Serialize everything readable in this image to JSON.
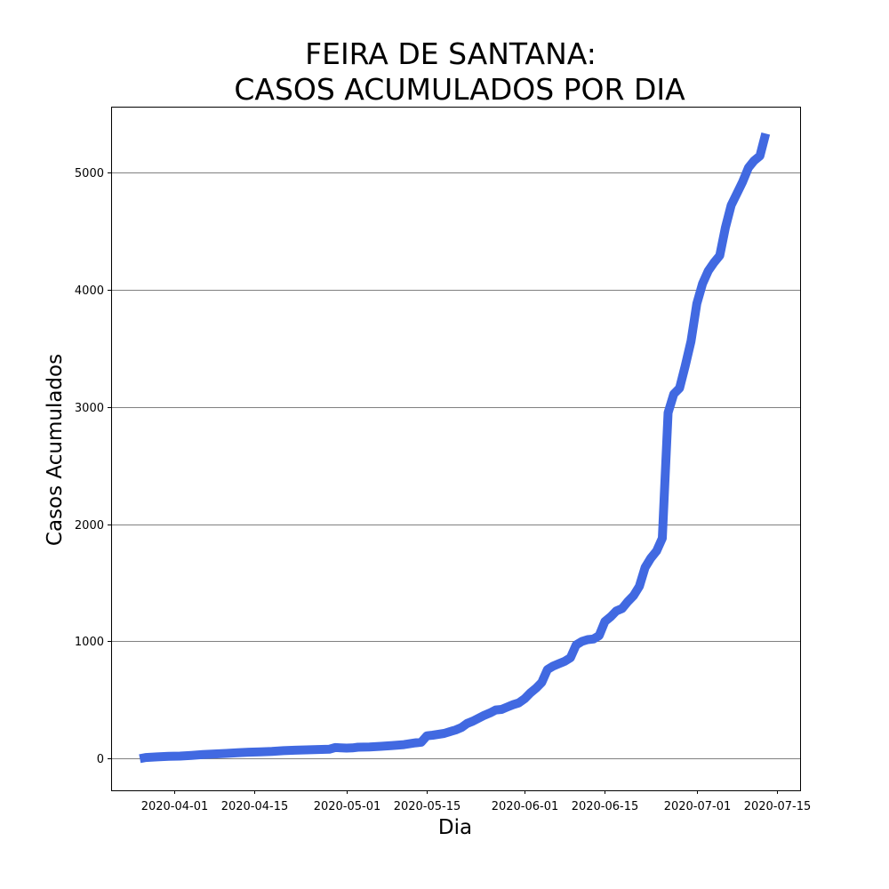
{
  "chart_data": {
    "type": "line",
    "title_lines": [
      "FEIRA DE SANTANA:",
      "CASOS ACUMULADOS POR DIA"
    ],
    "xlabel": "Dia",
    "ylabel": "Casos Acumulados",
    "xlim": [
      "2020-03-21",
      "2020-07-19"
    ],
    "ylim": [
      -270,
      5560
    ],
    "x_ticks": [
      "2020-04-01",
      "2020-04-15",
      "2020-05-01",
      "2020-05-15",
      "2020-06-01",
      "2020-06-15",
      "2020-07-01",
      "2020-07-15"
    ],
    "y_ticks": [
      0,
      1000,
      2000,
      3000,
      4000,
      5000
    ],
    "grid": "horizontal",
    "line_color": "#4169E1",
    "grid_color": "#808080",
    "series": [
      {
        "x": [
          "2020-03-26",
          "2020-03-27",
          "2020-03-29",
          "2020-03-31",
          "2020-04-02",
          "2020-04-04",
          "2020-04-06",
          "2020-04-08",
          "2020-04-10",
          "2020-04-12",
          "2020-04-14",
          "2020-04-16",
          "2020-04-18",
          "2020-04-20",
          "2020-04-22",
          "2020-04-24",
          "2020-04-26",
          "2020-04-28",
          "2020-04-29",
          "2020-05-01",
          "2020-05-02",
          "2020-05-03",
          "2020-05-05",
          "2020-05-07",
          "2020-05-09",
          "2020-05-11",
          "2020-05-13",
          "2020-05-14",
          "2020-05-15",
          "2020-05-16",
          "2020-05-18",
          "2020-05-20",
          "2020-05-21",
          "2020-05-22",
          "2020-05-23",
          "2020-05-25",
          "2020-05-26",
          "2020-05-27",
          "2020-05-28",
          "2020-05-29",
          "2020-05-30",
          "2020-05-31",
          "2020-06-01",
          "2020-06-02",
          "2020-06-03",
          "2020-06-04",
          "2020-06-05",
          "2020-06-06",
          "2020-06-07",
          "2020-06-08",
          "2020-06-09",
          "2020-06-10",
          "2020-06-11",
          "2020-06-12",
          "2020-06-13",
          "2020-06-14",
          "2020-06-15",
          "2020-06-16",
          "2020-06-17",
          "2020-06-18",
          "2020-06-19",
          "2020-06-20",
          "2020-06-21",
          "2020-06-22",
          "2020-06-23",
          "2020-06-24",
          "2020-06-25",
          "2020-06-26",
          "2020-06-27",
          "2020-06-28",
          "2020-06-29",
          "2020-06-30",
          "2020-07-01",
          "2020-07-02",
          "2020-07-03",
          "2020-07-04",
          "2020-07-05",
          "2020-07-06",
          "2020-07-07",
          "2020-07-08",
          "2020-07-09",
          "2020-07-10",
          "2020-07-11",
          "2020-07-12",
          "2020-07-13"
        ],
        "y": [
          0,
          10,
          15,
          20,
          22,
          28,
          35,
          40,
          45,
          50,
          55,
          58,
          62,
          68,
          72,
          75,
          78,
          80,
          95,
          90,
          92,
          98,
          100,
          105,
          112,
          120,
          135,
          140,
          195,
          200,
          215,
          245,
          265,
          300,
          320,
          370,
          390,
          415,
          420,
          440,
          460,
          475,
          510,
          560,
          600,
          650,
          760,
          790,
          810,
          830,
          860,
          970,
          1000,
          1015,
          1020,
          1050,
          1170,
          1210,
          1260,
          1280,
          1340,
          1390,
          1470,
          1630,
          1710,
          1770,
          1880,
          2950,
          3110,
          3160,
          3350,
          3560,
          3880,
          4050,
          4160,
          4230,
          4290,
          4530,
          4720,
          4820,
          4920,
          5040,
          5100,
          5140,
          5330
        ]
      }
    ]
  }
}
